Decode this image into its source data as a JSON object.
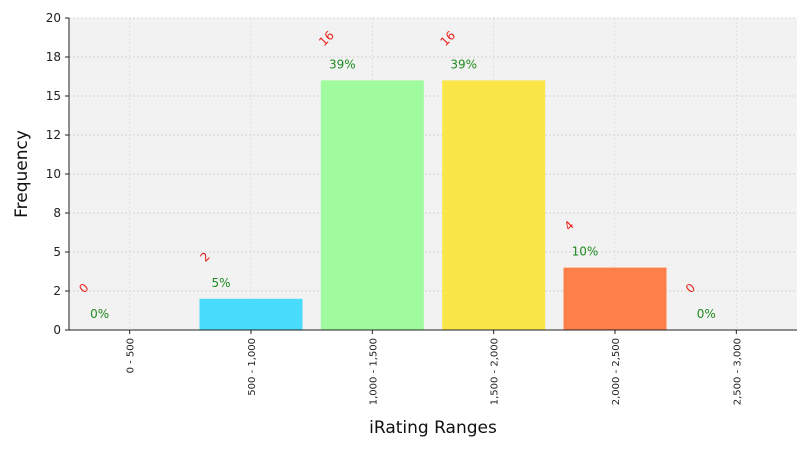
{
  "chart_data": {
    "type": "bar",
    "title": "",
    "xlabel": "iRating Ranges",
    "ylabel": "Frequency",
    "categories": [
      "0 - 500",
      "500 - 1,000",
      "1,000 - 1,500",
      "1,500 - 2,000",
      "2,000 - 2,500",
      "2,500 - 3,000"
    ],
    "values": [
      0,
      2,
      16,
      16,
      4,
      0
    ],
    "count_labels": [
      "0",
      "2",
      "16",
      "16",
      "4",
      "0"
    ],
    "percent_labels": [
      "0%",
      "5%",
      "39%",
      "39%",
      "10%",
      "0%"
    ],
    "colors": [
      "#ff9999",
      "#48dbfb",
      "#a0fb9e",
      "#fbe64a",
      "#ff7f4a",
      "#c39bd3"
    ],
    "ylim": [
      0,
      20
    ],
    "yticks": [
      0,
      2,
      5,
      8,
      10,
      12,
      15,
      18,
      20
    ],
    "ytick_values": [
      0,
      2.5,
      5,
      7.5,
      10,
      12.5,
      15,
      17.5,
      20
    ],
    "grid": true,
    "plot_background": "#f2f2f2",
    "count_label_color": "#e8221b",
    "percent_label_color": "#1f8a1f"
  }
}
